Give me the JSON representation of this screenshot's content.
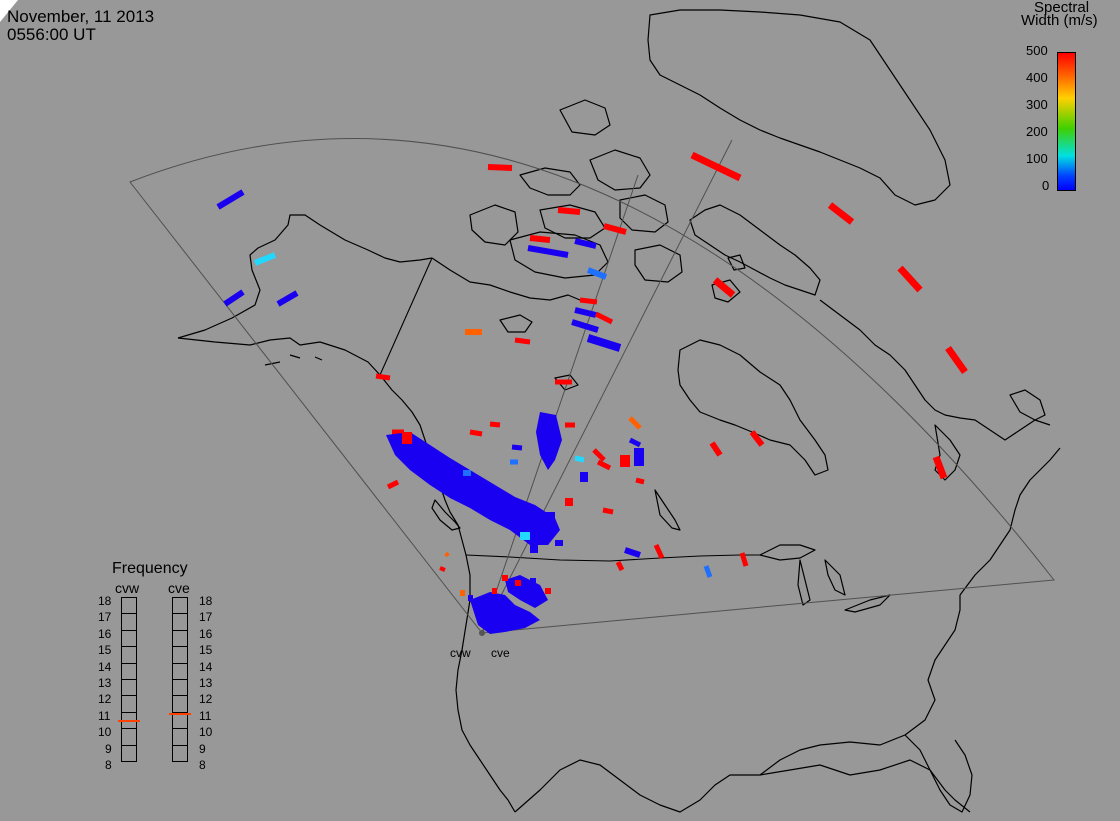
{
  "header": {
    "date": "November, 11 2013",
    "time": "0556:00 UT"
  },
  "colorbar": {
    "title_line1": "Spectral",
    "title_line2": "Width (m/s)",
    "ticks": [
      "500",
      "400",
      "300",
      "200",
      "100",
      "0"
    ],
    "colors": [
      "#ff0000",
      "#ff8000",
      "#ffd000",
      "#00c000",
      "#00e0ff",
      "#0000ff"
    ]
  },
  "frequency_panel": {
    "title": "Frequency",
    "radars": [
      {
        "name": "cvw",
        "frequency_mhz": 10.5
      },
      {
        "name": "cve",
        "frequency_mhz": 10.9
      }
    ],
    "scale": [
      "18",
      "17",
      "16",
      "15",
      "14",
      "13",
      "12",
      "11",
      "10",
      "9",
      "8"
    ],
    "marker_color": "#ff4000"
  },
  "sites": {
    "west_label": "cvw",
    "east_label": "cve"
  },
  "colors": {
    "background": "#989898",
    "map_lines": "#000000",
    "fov_outline": "#555555",
    "low_width": "#1000ee",
    "high_width": "#ff0000"
  }
}
